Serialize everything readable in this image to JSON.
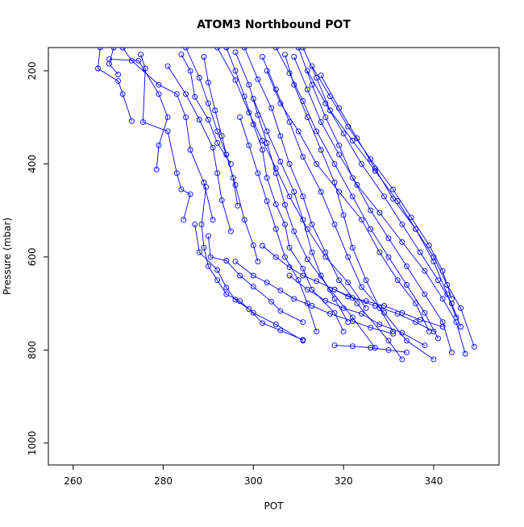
{
  "chart_data": {
    "type": "line",
    "title": "ATOM3 Northbound POT",
    "xlabel": "POT",
    "ylabel": "Pressure (mbar)",
    "xlim": [
      254.5,
      354.5
    ],
    "ylim_inverted": [
      1047,
      150
    ],
    "xticks": [
      260,
      280,
      300,
      320,
      340
    ],
    "yticks": [
      200,
      400,
      600,
      800,
      1000
    ],
    "grid": false,
    "legend": "none",
    "markers": "open circles joined by lines",
    "series_color": "#0000ff",
    "series": [
      {
        "values": [
          [
            266.0,
            150
          ],
          [
            265.5,
            195
          ],
          [
            270.0,
            222
          ],
          [
            271.0,
            250
          ],
          [
            273.0,
            308
          ]
        ]
      },
      {
        "values": [
          [
            269.0,
            150
          ],
          [
            268.0,
            185
          ],
          [
            270.0,
            208
          ]
        ]
      },
      {
        "values": [
          [
            268.0,
            175
          ],
          [
            274.5,
            178
          ],
          [
            279.0,
            250
          ],
          [
            281.0,
            300
          ],
          [
            279.0,
            360
          ],
          [
            278.5,
            412
          ]
        ]
      },
      {
        "values": [
          [
            275.0,
            165
          ],
          [
            276.0,
            195
          ],
          [
            275.5,
            310
          ],
          [
            281.0,
            330
          ],
          [
            283.0,
            420
          ],
          [
            284.0,
            455
          ],
          [
            286.0,
            465
          ],
          [
            284.5,
            520
          ]
        ]
      },
      {
        "values": [
          [
            271.0,
            150
          ],
          [
            273.0,
            178
          ],
          [
            279.0,
            230
          ],
          [
            283.0,
            250
          ],
          [
            285.0,
            300
          ],
          [
            286.0,
            370
          ],
          [
            289.0,
            440
          ],
          [
            291.0,
            520
          ]
        ]
      },
      {
        "values": [
          [
            281.0,
            190
          ],
          [
            285.0,
            250
          ],
          [
            288.0,
            305
          ],
          [
            291.0,
            365
          ],
          [
            292.0,
            420
          ],
          [
            293.0,
            478
          ],
          [
            295.0,
            545
          ]
        ]
      },
      {
        "values": [
          [
            284.0,
            165
          ],
          [
            286.0,
            200
          ],
          [
            287.0,
            256
          ],
          [
            290.0,
            305
          ],
          [
            292.0,
            355
          ],
          [
            295.0,
            400
          ]
        ]
      },
      {
        "values": [
          [
            285.0,
            150
          ],
          [
            288.0,
            215
          ],
          [
            290.0,
            270
          ],
          [
            292.0,
            330
          ],
          [
            294.0,
            380
          ],
          [
            295.5,
            430
          ],
          [
            296.5,
            490
          ]
        ]
      },
      {
        "values": [
          [
            289.0,
            170
          ],
          [
            290.0,
            225
          ],
          [
            291.5,
            285
          ],
          [
            293.0,
            340
          ],
          [
            294.0,
            380
          ],
          [
            296.0,
            445
          ],
          [
            298.0,
            520
          ],
          [
            300.0,
            575
          ],
          [
            301.0,
            610
          ]
        ]
      },
      {
        "values": [
          [
            289.5,
            450
          ],
          [
            288.5,
            530
          ],
          [
            289.0,
            580
          ],
          [
            290.0,
            620
          ],
          [
            292.0,
            650
          ],
          [
            294.0,
            680
          ],
          [
            297.0,
            695
          ],
          [
            300.0,
            720
          ],
          [
            305.0,
            745
          ],
          [
            311.0,
            780
          ]
        ]
      },
      {
        "values": [
          [
            287.0,
            530
          ],
          [
            288.0,
            590
          ],
          [
            292.0,
            628
          ],
          [
            294.0,
            666
          ],
          [
            296.0,
            692
          ],
          [
            299.0,
            712
          ],
          [
            302.0,
            742
          ],
          [
            306.0,
            758
          ],
          [
            311.0,
            778
          ]
        ]
      },
      {
        "values": [
          [
            290.0,
            555
          ],
          [
            290.5,
            600
          ],
          [
            294.0,
            608
          ],
          [
            297.0,
            640
          ],
          [
            300.0,
            664
          ],
          [
            304.0,
            696
          ],
          [
            306.0,
            716
          ],
          [
            311.0,
            740
          ]
        ]
      },
      {
        "values": [
          [
            294.0,
            150
          ],
          [
            296.0,
            200
          ],
          [
            298.0,
            255
          ],
          [
            300.0,
            315
          ],
          [
            302.0,
            370
          ],
          [
            303.0,
            430
          ],
          [
            305.0,
            487
          ],
          [
            307.0,
            530
          ],
          [
            308.0,
            580
          ],
          [
            311.0,
            625
          ],
          [
            313.0,
            670
          ],
          [
            318.0,
            720
          ],
          [
            320.0,
            760
          ]
        ]
      },
      {
        "values": [
          [
            296.0,
            160
          ],
          [
            299.0,
            230
          ],
          [
            301.0,
            295
          ],
          [
            303.0,
            355
          ],
          [
            305.0,
            420
          ],
          [
            307.0,
            488
          ],
          [
            309.0,
            545
          ],
          [
            312.0,
            605
          ],
          [
            317.0,
            670
          ],
          [
            322.0,
            730
          ],
          [
            327.0,
            795
          ]
        ]
      },
      {
        "values": [
          [
            298.0,
            150
          ],
          [
            301.0,
            218
          ],
          [
            304.0,
            280
          ],
          [
            306.0,
            340
          ],
          [
            308.0,
            400
          ],
          [
            311.0,
            470
          ],
          [
            313.0,
            530
          ],
          [
            316.0,
            590
          ],
          [
            319.0,
            650
          ],
          [
            323.0,
            700
          ],
          [
            330.0,
            780
          ],
          [
            333.0,
            820
          ]
        ]
      },
      {
        "values": [
          [
            302.0,
            170
          ],
          [
            305.0,
            240
          ],
          [
            308.0,
            310
          ],
          [
            311.0,
            385
          ],
          [
            315.0,
            460
          ],
          [
            318.0,
            530
          ],
          [
            321.0,
            600
          ],
          [
            324.0,
            665
          ],
          [
            329.0,
            720
          ],
          [
            334.0,
            780
          ],
          [
            340.0,
            820
          ]
        ]
      },
      {
        "values": [
          [
            305.0,
            150
          ],
          [
            308.0,
            205
          ],
          [
            311.0,
            265
          ],
          [
            314.0,
            330
          ],
          [
            318.0,
            400
          ],
          [
            322.0,
            470
          ],
          [
            326.0,
            540
          ],
          [
            330.0,
            600
          ],
          [
            334.0,
            660
          ],
          [
            338.0,
            720
          ],
          [
            341.0,
            775
          ]
        ]
      },
      {
        "values": [
          [
            309.0,
            170
          ],
          [
            312.0,
            240
          ],
          [
            315.0,
            310
          ],
          [
            319.0,
            380
          ],
          [
            323.0,
            445
          ],
          [
            328.0,
            505
          ],
          [
            333.0,
            568
          ],
          [
            338.0,
            630
          ],
          [
            342.0,
            690
          ],
          [
            345.0,
            740
          ],
          [
            347.0,
            808
          ]
        ]
      },
      {
        "values": [
          [
            311.0,
            150
          ],
          [
            314.0,
            215
          ],
          [
            317.0,
            285
          ],
          [
            322.0,
            350
          ],
          [
            327.0,
            415
          ],
          [
            332.0,
            480
          ],
          [
            336.0,
            540
          ],
          [
            340.0,
            600
          ],
          [
            343.0,
            660
          ],
          [
            346.0,
            710
          ],
          [
            349.0,
            793
          ]
        ]
      },
      {
        "values": [
          [
            313.0,
            190
          ],
          [
            317.0,
            255
          ],
          [
            321.0,
            320
          ],
          [
            326.0,
            390
          ],
          [
            331.0,
            455
          ],
          [
            335.0,
            515
          ],
          [
            339.0,
            575
          ],
          [
            342.0,
            630
          ],
          [
            344.0,
            690
          ]
        ]
      },
      {
        "values": [
          [
            307.0,
            165
          ],
          [
            309.0,
            230
          ],
          [
            312.0,
            300
          ],
          [
            315.0,
            370
          ],
          [
            318.0,
            440
          ],
          [
            320.0,
            510
          ],
          [
            322.0,
            580
          ],
          [
            325.0,
            650
          ],
          [
            328.0,
            710
          ],
          [
            331.0,
            760
          ]
        ]
      },
      {
        "values": [
          [
            312.0,
            200
          ],
          [
            316.0,
            270
          ],
          [
            320.0,
            335
          ],
          [
            324.0,
            400
          ],
          [
            329.0,
            470
          ],
          [
            333.0,
            530
          ],
          [
            337.0,
            590
          ],
          [
            341.0,
            650
          ],
          [
            344.0,
            700
          ],
          [
            346.0,
            750
          ]
        ]
      },
      {
        "values": [
          [
            310.0,
            150
          ],
          [
            313.0,
            230
          ],
          [
            316.0,
            300
          ],
          [
            319.0,
            360
          ],
          [
            322.0,
            430
          ],
          [
            326.0,
            500
          ],
          [
            330.0,
            560
          ],
          [
            334.0,
            620
          ],
          [
            338.0,
            680
          ],
          [
            342.0,
            740
          ],
          [
            344.0,
            805
          ]
        ]
      },
      {
        "values": [
          [
            300.0,
            260
          ],
          [
            303.0,
            330
          ],
          [
            306.0,
            395
          ],
          [
            309.0,
            460
          ],
          [
            311.0,
            520
          ],
          [
            313.0,
            590
          ],
          [
            315.0,
            640
          ],
          [
            318.0,
            690
          ],
          [
            321.0,
            740
          ]
        ]
      },
      {
        "values": [
          [
            297.0,
            300
          ],
          [
            299.0,
            360
          ],
          [
            301.0,
            420
          ],
          [
            303.0,
            480
          ],
          [
            305.0,
            540
          ],
          [
            307.0,
            600
          ],
          [
            310.0,
            650
          ],
          [
            312.0,
            700
          ],
          [
            314.0,
            760
          ]
        ]
      },
      {
        "values": [
          [
            303.0,
            200
          ],
          [
            306.0,
            270
          ],
          [
            310.0,
            330
          ],
          [
            314.0,
            400
          ],
          [
            319.0,
            460
          ],
          [
            324.0,
            520
          ],
          [
            328.0,
            590
          ],
          [
            332.0,
            650
          ],
          [
            336.0,
            700
          ],
          [
            339.0,
            760
          ]
        ]
      },
      {
        "values": [
          [
            292.0,
            150
          ],
          [
            296.0,
            220
          ],
          [
            299.0,
            290
          ],
          [
            302.0,
            350
          ],
          [
            305.0,
            410
          ],
          [
            308.0,
            470
          ],
          [
            312.0,
            540
          ],
          [
            316.0,
            600
          ],
          [
            321.0,
            655
          ],
          [
            325.0,
            710
          ]
        ]
      },
      {
        "values": [
          [
            315.0,
            210
          ],
          [
            319.0,
            280
          ],
          [
            323.0,
            345
          ],
          [
            327.0,
            410
          ],
          [
            331.0,
            475
          ],
          [
            336.0,
            540
          ],
          [
            340.0,
            610
          ],
          [
            343.0,
            680
          ],
          [
            345.0,
            730
          ]
        ]
      },
      {
        "values": [
          [
            296.0,
            610
          ],
          [
            300.0,
            640
          ],
          [
            303.0,
            655
          ],
          [
            306.0,
            672
          ],
          [
            309.0,
            690
          ],
          [
            313.0,
            705
          ],
          [
            317.0,
            722
          ],
          [
            322.0,
            738
          ],
          [
            326.0,
            752
          ],
          [
            331.0,
            765
          ]
        ]
      },
      {
        "values": [
          [
            308.0,
            640
          ],
          [
            312.0,
            670
          ],
          [
            316.0,
            694
          ],
          [
            320.0,
            710
          ],
          [
            324.0,
            722
          ],
          [
            328.0,
            745
          ],
          [
            333.0,
            763
          ],
          [
            338.0,
            790
          ]
        ]
      },
      {
        "values": [
          [
            318.0,
            670
          ],
          [
            321.0,
            685
          ],
          [
            325.0,
            695
          ],
          [
            329.0,
            705
          ],
          [
            333.0,
            720
          ],
          [
            337.0,
            735
          ],
          [
            342.0,
            750
          ]
        ]
      },
      {
        "values": [
          [
            302.0,
            576
          ],
          [
            305.0,
            600
          ],
          [
            308.0,
            622
          ],
          [
            311.0,
            640
          ],
          [
            314.0,
            652
          ],
          [
            318.0,
            670
          ],
          [
            322.0,
            688
          ],
          [
            327.0,
            705
          ],
          [
            332.0,
            722
          ],
          [
            336.0,
            740
          ],
          [
            340.0,
            760
          ]
        ]
      },
      {
        "values": [
          [
            318.0,
            790
          ],
          [
            322.0,
            792
          ],
          [
            326.0,
            795
          ],
          [
            330.0,
            800
          ],
          [
            334.0,
            805
          ]
        ]
      }
    ]
  }
}
